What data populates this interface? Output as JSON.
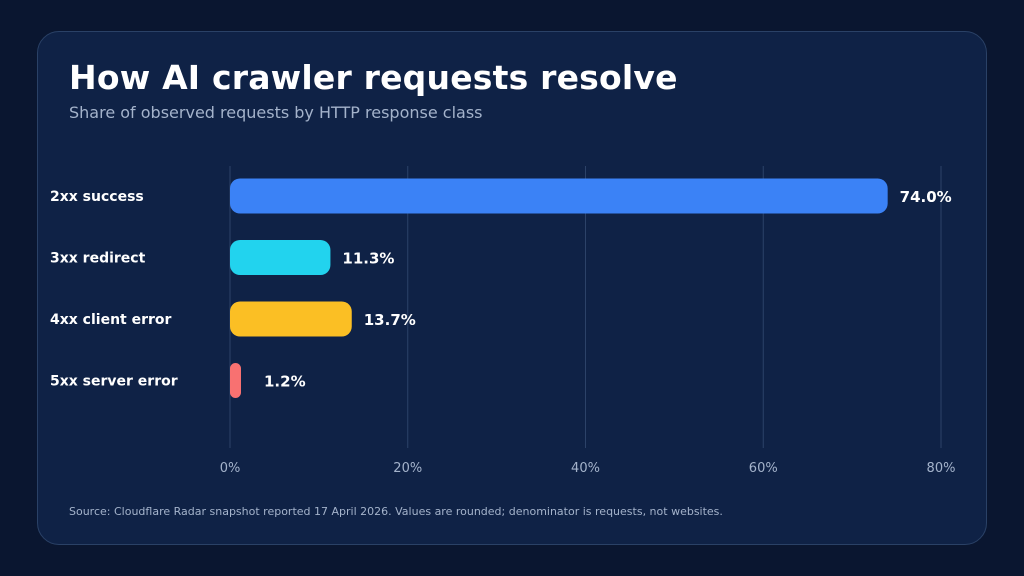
{
  "chart_data": {
    "type": "bar",
    "orientation": "horizontal",
    "title": "How AI crawler requests resolve",
    "subtitle": "Share of observed requests by HTTP response class",
    "categories": [
      "2xx success",
      "3xx redirect",
      "4xx client error",
      "5xx server error"
    ],
    "values": [
      74.0,
      11.3,
      13.7,
      1.2
    ],
    "data_labels": [
      "74.0%",
      "11.3%",
      "13.7%",
      "1.2%"
    ],
    "colors": [
      "#3b82f6",
      "#22d3ee",
      "#fbbf24",
      "#f87171"
    ],
    "xlim": [
      0,
      80
    ],
    "x_ticks": [
      0,
      20,
      40,
      60,
      80
    ],
    "x_tick_labels": [
      "0%",
      "20%",
      "40%",
      "60%",
      "80%"
    ],
    "grid": "vertical",
    "source": "Source: Cloudflare Radar snapshot reported 17 April 2026. Values are rounded; denominator is requests, not websites."
  }
}
